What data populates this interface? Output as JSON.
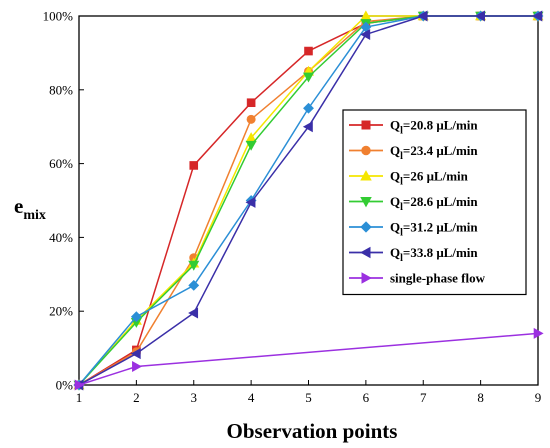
{
  "chart_data": {
    "type": "line",
    "xlabel": "Observation points",
    "ylabel": "e",
    "ylabel_sub": "mix",
    "x": [
      1,
      2,
      3,
      4,
      5,
      6,
      7,
      8,
      9
    ],
    "xlim": [
      1,
      9
    ],
    "ylim": [
      0,
      100
    ],
    "y_unit": "%",
    "x_ticks": [
      "1",
      "2",
      "3",
      "4",
      "5",
      "6",
      "7",
      "8",
      "9"
    ],
    "y_ticks": [
      "0%",
      "20%",
      "40%",
      "60%",
      "80%",
      "100%"
    ],
    "grid": false,
    "legend_position": "right",
    "series": [
      {
        "name_main": "Q",
        "name_sub": "l",
        "name_rest": "=20.8 μL/min",
        "color": "#d62728",
        "marker": "square",
        "x": [
          1,
          2,
          3,
          4,
          5,
          6,
          7,
          8,
          9
        ],
        "values": [
          0,
          9.5,
          59.5,
          76.5,
          90.5,
          98,
          100,
          100,
          100
        ]
      },
      {
        "name_main": "Q",
        "name_sub": "l",
        "name_rest": "=23.4 μL/min",
        "color": "#f08030",
        "marker": "circle",
        "x": [
          1,
          2,
          3,
          4,
          5,
          6,
          7,
          8,
          9
        ],
        "values": [
          0,
          9,
          34.5,
          72,
          85,
          98.5,
          100,
          100,
          100
        ]
      },
      {
        "name_main": "Q",
        "name_sub": "l",
        "name_rest": "=26 μL/min",
        "color": "#f5e600",
        "marker": "triangle-up",
        "x": [
          1,
          2,
          3,
          4,
          5,
          6,
          7,
          8,
          9
        ],
        "values": [
          0,
          17.5,
          33,
          67,
          85,
          100,
          100,
          100,
          100
        ]
      },
      {
        "name_main": "Q",
        "name_sub": "l",
        "name_rest": "=28.6 μL/min",
        "color": "#33cc33",
        "marker": "triangle-down",
        "x": [
          1,
          2,
          3,
          4,
          5,
          6,
          7,
          8,
          9
        ],
        "values": [
          0,
          17,
          32.5,
          65,
          83.5,
          98,
          100,
          100,
          100
        ]
      },
      {
        "name_main": "Q",
        "name_sub": "l",
        "name_rest": "=31.2 μL/min",
        "color": "#2b8fd6",
        "marker": "diamond",
        "x": [
          1,
          2,
          3,
          4,
          5,
          6,
          7,
          8,
          9
        ],
        "values": [
          0,
          18.5,
          27,
          50,
          75,
          97,
          100,
          100,
          100
        ]
      },
      {
        "name_main": "Q",
        "name_sub": "l",
        "name_rest": "=33.8 μL/min",
        "color": "#3a2fa8",
        "marker": "triangle-left",
        "x": [
          1,
          2,
          3,
          4,
          5,
          6,
          7,
          8,
          9
        ],
        "values": [
          0,
          8.5,
          19.5,
          49.5,
          70,
          95,
          100,
          100,
          100
        ]
      },
      {
        "name_main": "single-phase flow",
        "name_sub": "",
        "name_rest": "",
        "color": "#9b30e0",
        "marker": "triangle-right",
        "x": [
          1,
          2,
          9
        ],
        "values": [
          0,
          5,
          14
        ]
      }
    ]
  }
}
